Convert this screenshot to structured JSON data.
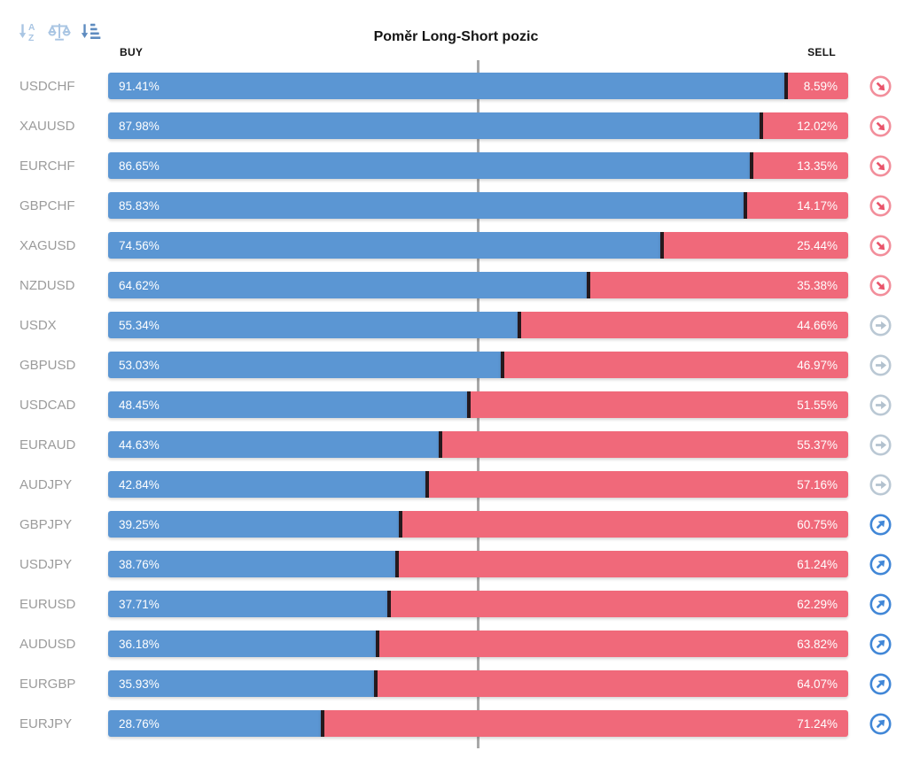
{
  "widget": {
    "title": "Poměr Long-Short pozic",
    "buy_header": "BUY",
    "sell_header": "SELL"
  },
  "toolbar": {
    "sort_alphabetical_label": "A",
    "sort_alphabetical_label2": "Z",
    "icons": [
      {
        "name": "sort-alphabetical-icon",
        "active": false
      },
      {
        "name": "balance-scale-icon",
        "active": false
      },
      {
        "name": "sort-by-ratio-icon",
        "active": true
      }
    ]
  },
  "colors": {
    "buy_bar": "#5b96d3",
    "sell_bar": "#f0697a",
    "bar_divider": "#26191d",
    "midline": "#a8a8a8",
    "pair_label": "#9b9b9b",
    "sort_inactive": "#a9c5e3",
    "sort_active": "#5f8cc0",
    "signal_sell": "#e9536a",
    "signal_neutral": "#bac8d4",
    "signal_buy": "#4187d7"
  },
  "chart_data": {
    "type": "bar",
    "orientation": "horizontal",
    "stacked": true,
    "title": "Poměr Long-Short pozic",
    "xlim": [
      0,
      100
    ],
    "midline_value": 50,
    "legend": [
      "BUY",
      "SELL"
    ],
    "legend_position": "top",
    "categories": [
      "USDCHF",
      "XAUUSD",
      "EURCHF",
      "GBPCHF",
      "XAGUSD",
      "NZDUSD",
      "USDX",
      "GBPUSD",
      "USDCAD",
      "EURAUD",
      "AUDJPY",
      "GBPJPY",
      "USDJPY",
      "EURUSD",
      "AUDUSD",
      "EURGBP",
      "EURJPY"
    ],
    "series": [
      {
        "name": "BUY",
        "color": "#5b96d3",
        "values": [
          91.41,
          87.98,
          86.65,
          85.83,
          74.56,
          64.62,
          55.34,
          53.03,
          48.45,
          44.63,
          42.84,
          39.25,
          38.76,
          37.71,
          36.18,
          35.93,
          28.76
        ]
      },
      {
        "name": "SELL",
        "color": "#f0697a",
        "values": [
          8.59,
          12.02,
          13.35,
          14.17,
          25.44,
          35.38,
          44.66,
          46.97,
          51.55,
          55.37,
          57.16,
          60.75,
          61.24,
          62.29,
          63.82,
          64.07,
          71.24
        ]
      }
    ],
    "signals": [
      "sell",
      "sell",
      "sell",
      "sell",
      "sell",
      "sell",
      "neutral",
      "neutral",
      "neutral",
      "neutral",
      "neutral",
      "buy",
      "buy",
      "buy",
      "buy",
      "buy",
      "buy"
    ]
  }
}
